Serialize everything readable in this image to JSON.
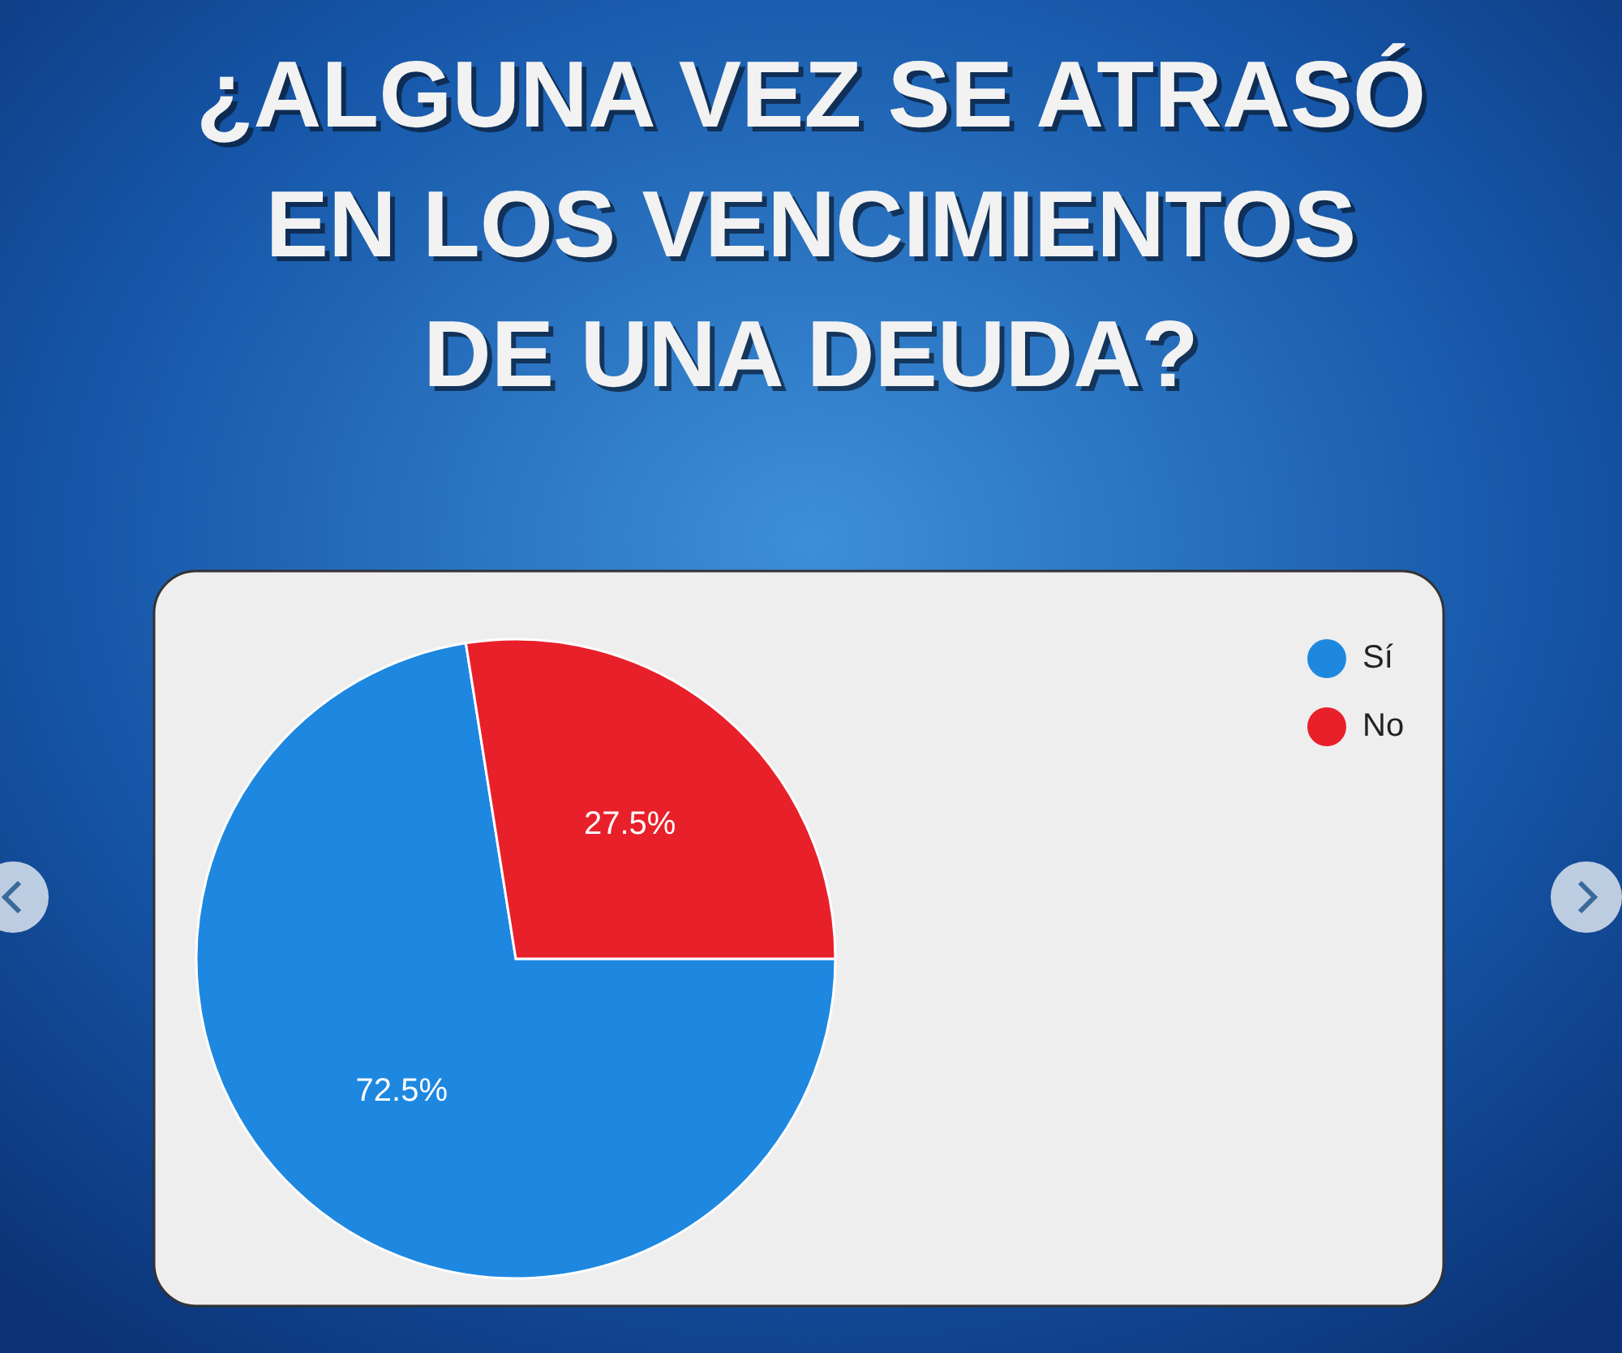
{
  "chart_data": {
    "type": "pie",
    "title": "¿ALGUNA VEZ SE ATRASÓ EN LOS VENCIMIENTOS DE UNA DEUDA?",
    "categories": [
      "Sí",
      "No"
    ],
    "values": [
      72.5,
      27.5
    ],
    "colors": [
      "#1e88e0",
      "#e8202a"
    ],
    "value_labels": [
      "72.5%",
      "27.5%"
    ],
    "legend": "top right"
  }
}
